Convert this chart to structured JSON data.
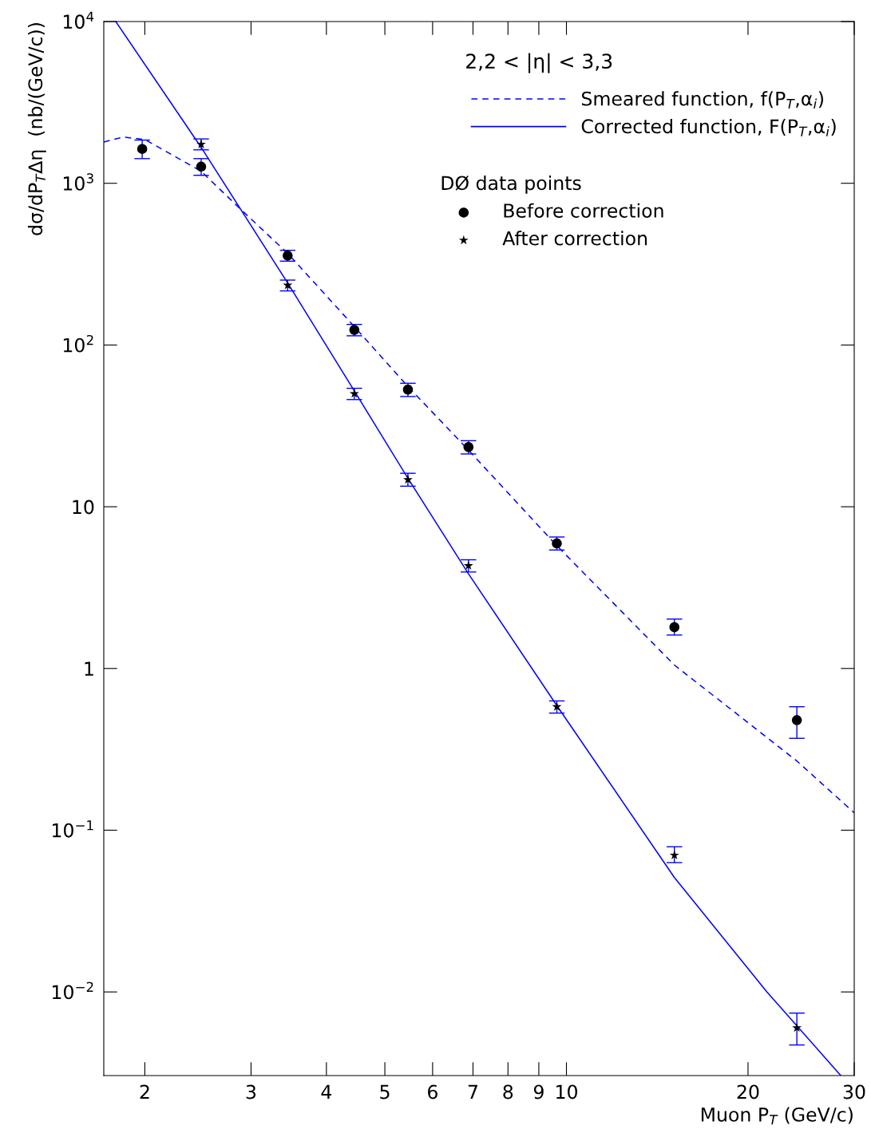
{
  "chart_data": {
    "type": "scatter",
    "xlabel": "Muon P$_{T}$ (GeV/c)",
    "ylabel": "dσ/dP$_{T}$Δη  (nb/(GeV/c))",
    "annotations": [
      "2,2 < |η| < 3,3"
    ],
    "legend_title": "DØ data points",
    "log": "xy",
    "grid": false,
    "legend": "top right",
    "xlim": [
      1.71,
      30
    ],
    "ylim": [
      0.00304,
      10000
    ],
    "xticks": [
      2,
      3,
      4,
      5,
      6,
      7,
      8,
      9,
      10,
      20,
      30
    ],
    "yticks": [
      {
        "value": 0.01,
        "label": "10$^{−2}$"
      },
      {
        "value": 0.1,
        "label": "10$^{−1}$"
      },
      1,
      10,
      {
        "value": 100,
        "label": "10$^{2}$"
      },
      {
        "value": 1000,
        "label": "10$^{3}$"
      },
      {
        "value": 10000,
        "label": "10$^{4}$"
      }
    ],
    "series": [
      {
        "name": "Smeared function, f(P$_{T}$,α$_{i}$)",
        "type": "line",
        "line_style": "dashed",
        "marker": "none",
        "color": "#0000ff",
        "x": [
          1.71,
          1.84,
          2.0,
          2.48,
          2.86,
          3.45,
          4.45,
          5.46,
          6.88,
          9.64,
          15.1,
          24.1,
          30
        ],
        "values": [
          1800,
          1930,
          1866,
          1186,
          711,
          369,
          130,
          55.4,
          22.4,
          5.74,
          1.05,
          0.268,
          0.128
        ]
      },
      {
        "name": "Corrected function, F(P$_{T}$,α$_{i}$)",
        "type": "line",
        "line_style": "solid",
        "marker": "none",
        "color": "#0000ff",
        "x": [
          1.79,
          2.48,
          3.45,
          4.45,
          5.46,
          6.88,
          9.64,
          15.1,
          21.5,
          28.5
        ],
        "values": [
          10000,
          1667,
          242,
          52,
          15.0,
          3.85,
          0.59,
          0.051,
          0.01,
          0.00304
        ]
      },
      {
        "name": "Before correction",
        "marker": "circle",
        "color": "#000000",
        "x": [
          1.98,
          2.48,
          3.45,
          4.45,
          5.46,
          6.88,
          9.64,
          15.1,
          24.1
        ],
        "values": [
          1630,
          1268,
          357,
          124,
          53,
          23.4,
          5.93,
          1.8,
          0.479
        ],
        "errors": [
          [
            1420,
            1850
          ],
          [
            1120,
            1420
          ],
          [
            330,
            385
          ],
          [
            114,
            134
          ],
          [
            48,
            58
          ],
          [
            21.2,
            25.6
          ],
          [
            5.4,
            6.5
          ],
          [
            1.61,
            2.02
          ],
          [
            0.37,
            0.58
          ]
        ]
      },
      {
        "name": "After correction",
        "marker": "star",
        "color": "#000000",
        "x": [
          2.48,
          3.45,
          4.45,
          5.46,
          6.88,
          9.64,
          15.1,
          24.1
        ],
        "values": [
          1742,
          234,
          50,
          14.7,
          4.32,
          0.58,
          0.07,
          0.006
        ],
        "errors": [
          [
            1610,
            1880
          ],
          [
            216,
            252
          ],
          [
            46,
            54
          ],
          [
            13.4,
            16.1
          ],
          [
            3.95,
            4.7
          ],
          [
            0.53,
            0.63
          ],
          [
            0.063,
            0.079
          ],
          [
            0.0047,
            0.0074
          ]
        ]
      }
    ]
  }
}
